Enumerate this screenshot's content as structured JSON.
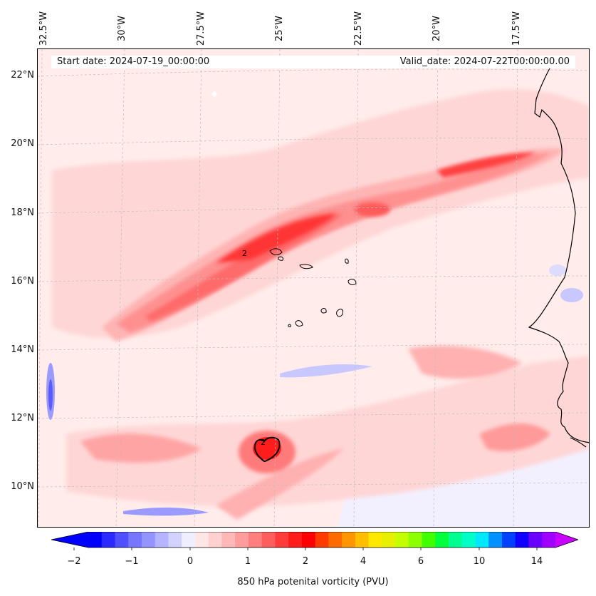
{
  "map": {
    "start_date": "Start date: 2024-07-19_00:00:00",
    "valid_date": "Valid_date: 2024-07-22T00:00:00.00",
    "contour_labels": [
      "2",
      "2"
    ],
    "longitude_labels": [
      "32.5°W",
      "30°W",
      "27.5°W",
      "25°W",
      "22.5°W",
      "20°W",
      "17.5°W"
    ],
    "latitude_labels": [
      "22°N",
      "20°N",
      "18°N",
      "16°N",
      "14°N",
      "12°N",
      "10°N"
    ]
  },
  "colorbar": {
    "label": "850 hPa potenital vorticity (PVU)",
    "tick_labels": [
      "−2",
      "−1",
      "0",
      "1",
      "2",
      "4",
      "6",
      "10",
      "14"
    ],
    "colors": [
      "#0000ff",
      "#2a2aff",
      "#5050ff",
      "#7676ff",
      "#9494ff",
      "#b4b4ff",
      "#d2d2ff",
      "#eeeeff",
      "#ffe6e6",
      "#ffd0d0",
      "#ffb8b8",
      "#ff9c9c",
      "#ff7e7e",
      "#ff5e5e",
      "#ff3c3c",
      "#ff1c1c",
      "#ff0000",
      "#ff3a00",
      "#ff6a00",
      "#ff9600",
      "#ffbe00",
      "#ffe800",
      "#e6f000",
      "#c4ff00",
      "#8cff00",
      "#40ff00",
      "#00ff3c",
      "#00ff90",
      "#00ffc8",
      "#00e8ff",
      "#0090ff",
      "#0040ff",
      "#1000ff",
      "#6a00ff",
      "#a000ff"
    ],
    "under_color": "#0000ff",
    "over_color": "#c800ff"
  }
}
